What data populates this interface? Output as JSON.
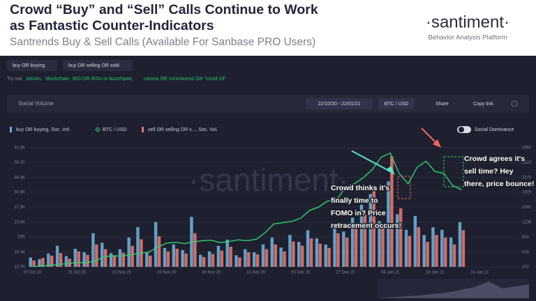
{
  "header": {
    "title_lines": [
      "Crowd “Buy” and “Sell” Calls Continue to Work",
      "as Fantastic Counter-Indicators"
    ],
    "subtitle": "Santrends Buy & Sell Calls (Available For Sanbase PRO Users)",
    "logo": "·santiment·",
    "logo_sub": "Behavior Analysis Platform"
  },
  "ui": {
    "chips": [
      "buy OR buying",
      "buy OR selling OR sold"
    ],
    "try_out": {
      "prefix": "Try out",
      "links": [
        "bitcoin,",
        "blockchain,",
        "IEO OR IEOs or launchpad,",
        "corona OR coronavirus OR \"covid-19\""
      ]
    },
    "panel_title": "Social Volume",
    "date_range": "22/10/20 - 22/01/21",
    "pair": "BTC / USD",
    "share": "Share",
    "copy_link": "Copy link",
    "toggle": "Social Dominance",
    "watermark": "·santiment·"
  },
  "chart_data": {
    "type": "bar",
    "categories": [
      "20 Oct 20",
      null,
      null,
      null,
      null,
      "31 Oct 20",
      null,
      null,
      null,
      null,
      "10 Nov 20",
      null,
      null,
      null,
      null,
      "20 Nov 20",
      null,
      null,
      null,
      null,
      "30 Nov 20",
      null,
      null,
      null,
      null,
      "10 Dec 20",
      null,
      null,
      null,
      null,
      "20 Dec 20",
      null,
      null,
      null,
      null,
      "27 Dec 20",
      null,
      null,
      null,
      null,
      "08 Jan 21",
      null,
      null,
      null,
      null,
      "18 Jan 21",
      null,
      null,
      null,
      null,
      "24 Jan 21",
      null,
      null,
      null,
      null
    ],
    "series": [
      {
        "name": "buy OR buying, Soc. Vol.",
        "color": "#6aaed6",
        "axis": "y2",
        "values": [
          420,
          380,
          510,
          690,
          450,
          620,
          540,
          980,
          760,
          520,
          610,
          880,
          1120,
          530,
          1240,
          640,
          720,
          590,
          1360,
          480,
          560,
          690,
          830,
          470,
          610,
          540,
          720,
          880,
          650,
          940,
          780,
          1050,
          860,
          720,
          1180,
          1020,
          1340,
          1640,
          1890,
          1260,
          2180,
          1420,
          1060,
          1380,
          940,
          1120,
          1060,
          880,
          1240,
          null,
          null,
          null,
          null,
          null,
          null
        ]
      },
      {
        "name": "BTC / USD",
        "color": "#2fd36b",
        "type": "line",
        "values": [
          12800,
          12900,
          13100,
          13300,
          13500,
          13800,
          13700,
          14100,
          15200,
          15400,
          15300,
          15700,
          16000,
          16300,
          17500,
          18500,
          18700,
          18400,
          18800,
          19100,
          19200,
          18600,
          18900,
          19300,
          19100,
          19400,
          21000,
          23200,
          23500,
          23800,
          24600,
          26500,
          27300,
          28800,
          29000,
          32200,
          33000,
          34500,
          36500,
          39500,
          40500,
          35500,
          33000,
          37000,
          38500,
          36000,
          35500,
          32500,
          31500,
          null,
          null,
          null,
          null,
          null,
          null
        ]
      },
      {
        "name": "sell OR selling OR s..., Soc. Vol.",
        "color": "#e8736c",
        "axis": "y2",
        "values": [
          350,
          410,
          460,
          520,
          390,
          560,
          480,
          720,
          610,
          470,
          530,
          690,
          840,
          460,
          910,
          560,
          620,
          510,
          980,
          430,
          500,
          580,
          670,
          420,
          540,
          490,
          610,
          720,
          560,
          790,
          690,
          860,
          740,
          640,
          980,
          880,
          1150,
          1420,
          2050,
          1180,
          2760,
          1560,
          920,
          1120,
          780,
          940,
          880,
          720,
          1050,
          null,
          null,
          null,
          null,
          null,
          null
        ]
      }
    ],
    "ylim": [
      12700,
      41800
    ],
    "yticks": [
      {
        "value": 12700,
        "label": "12.7K"
      },
      {
        "value": 16300,
        "label": "16.3K"
      },
      {
        "value": 20000,
        "label": "20K"
      },
      {
        "value": 23600,
        "label": "23.6K"
      },
      {
        "value": 27300,
        "label": "27.3K"
      },
      {
        "value": 30900,
        "label": "30.9K"
      },
      {
        "value": 34500,
        "label": "34.5K"
      },
      {
        "value": 38200,
        "label": "38.2K"
      },
      {
        "value": 41800,
        "label": "41.8K"
      }
    ],
    "y2lim": [
      202,
      2960
    ],
    "y2ticks": [
      202,
      545,
      891,
      1236,
      1581,
      1925,
      2270,
      2615,
      2960
    ],
    "grid": true,
    "annotations": [
      [
        "Crowd thinks it's",
        "finally time to",
        "FOMO in? Price",
        "retracement occurs!"
      ],
      [
        "Crowd agrees it's",
        "sell time? Hey",
        "there, price bounce!"
      ]
    ]
  }
}
